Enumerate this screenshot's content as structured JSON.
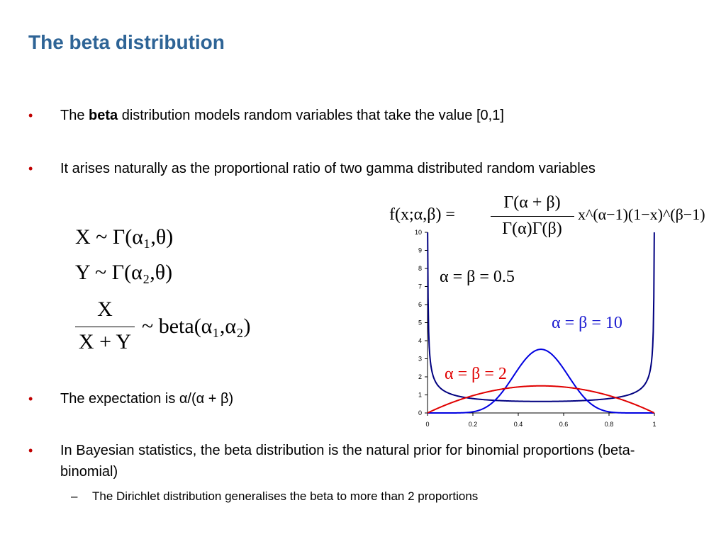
{
  "slide": {
    "title": "The beta distribution",
    "bullets": [
      {
        "pre": "The ",
        "bold": "beta",
        "post": " distribution models random variables that take the value [0,1]"
      },
      {
        "text": "It arises naturally as the proportional ratio of two gamma distributed random variables"
      },
      {
        "text": "The expectation is α/(α + β)"
      },
      {
        "text": "In Bayesian statistics, the beta distribution is the natural prior for binomial proportions (beta-binomial)"
      }
    ],
    "sub_bullet": "The Dirichlet distribution generalises the beta to more than 2 proportions",
    "bullet_char": "•",
    "dash_char": "–"
  },
  "equations": {
    "x_gamma": "X ~ Γ(α₁,θ)",
    "y_gamma": "Y ~ Γ(α₂,θ)",
    "ratio_num": "X",
    "ratio_den": "X + Y",
    "ratio_rhs": "~ beta(α₁,α₂)",
    "pdf_lhs": "f(x;α,β) =",
    "pdf_num": "Γ(α + β)",
    "pdf_den": "Γ(α)Γ(β)",
    "pdf_rhs": "x^(α−1)(1−x)^(β−1)"
  },
  "chart_data": {
    "type": "line",
    "xlim": [
      0,
      1
    ],
    "ylim": [
      0,
      10
    ],
    "x_ticks": [
      "0",
      "0.2",
      "0.4",
      "0.6",
      "0.8",
      "1"
    ],
    "y_ticks": [
      "0",
      "1",
      "2",
      "3",
      "4",
      "5",
      "6",
      "7",
      "8",
      "9",
      "10"
    ],
    "grid": false,
    "series": [
      {
        "name": "α = β = 0.5",
        "alpha": 0.5,
        "beta": 0.5,
        "color": "#000080"
      },
      {
        "name": "α = β = 10",
        "alpha": 10,
        "beta": 10,
        "color": "#0000e0"
      },
      {
        "name": "α = β = 2",
        "alpha": 2,
        "beta": 2,
        "color": "#e00000"
      }
    ],
    "annotations": [
      "α = β = 0.5",
      "α = β = 10",
      "α = β = 2"
    ]
  },
  "colors": {
    "title": "#2e6496",
    "bullet": "#c00000"
  }
}
